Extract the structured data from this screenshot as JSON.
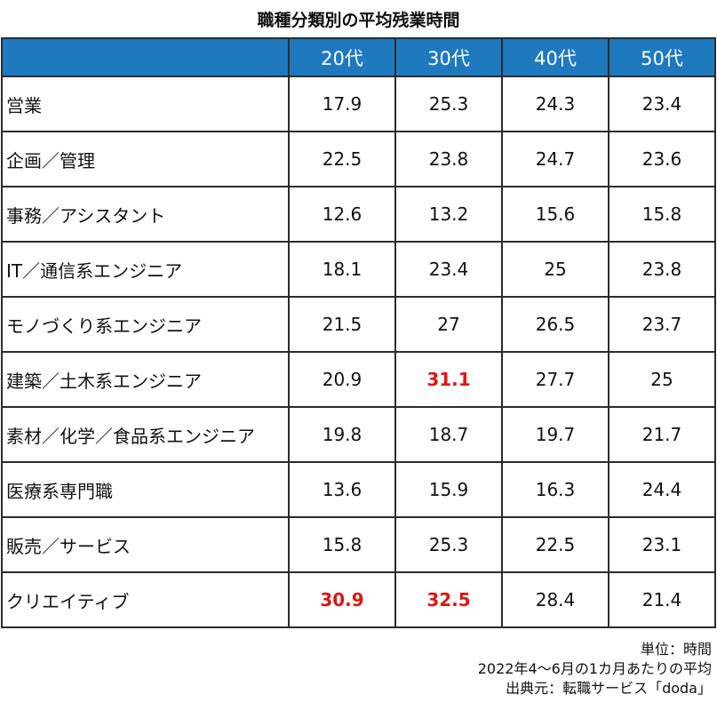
{
  "title": "職種分類別の平均残業時間",
  "chart_data": {
    "type": "table",
    "columns": [
      "",
      "20代",
      "30代",
      "40代",
      "50代"
    ],
    "rows": [
      {
        "category": "営業",
        "values": [
          "17.9",
          "25.3",
          "24.3",
          "23.4"
        ],
        "highlight": [
          false,
          false,
          false,
          false
        ]
      },
      {
        "category": "企画／管理",
        "values": [
          "22.5",
          "23.8",
          "24.7",
          "23.6"
        ],
        "highlight": [
          false,
          false,
          false,
          false
        ]
      },
      {
        "category": "事務／アシスタント",
        "values": [
          "12.6",
          "13.2",
          "15.6",
          "15.8"
        ],
        "highlight": [
          false,
          false,
          false,
          false
        ]
      },
      {
        "category": "IT／通信系エンジニア",
        "values": [
          "18.1",
          "23.4",
          "25",
          "23.8"
        ],
        "highlight": [
          false,
          false,
          false,
          false
        ]
      },
      {
        "category": "モノづくり系エンジニア",
        "values": [
          "21.5",
          "27",
          "26.5",
          "23.7"
        ],
        "highlight": [
          false,
          false,
          false,
          false
        ]
      },
      {
        "category": "建築／土木系エンジニア",
        "values": [
          "20.9",
          "31.1",
          "27.7",
          "25"
        ],
        "highlight": [
          false,
          true,
          false,
          false
        ]
      },
      {
        "category": "素材／化学／食品系エンジニア",
        "values": [
          "19.8",
          "18.7",
          "19.7",
          "21.7"
        ],
        "highlight": [
          false,
          false,
          false,
          false
        ]
      },
      {
        "category": "医療系専門職",
        "values": [
          "13.6",
          "15.9",
          "16.3",
          "24.4"
        ],
        "highlight": [
          false,
          false,
          false,
          false
        ]
      },
      {
        "category": "販売／サービス",
        "values": [
          "15.8",
          "25.3",
          "22.5",
          "23.1"
        ],
        "highlight": [
          false,
          false,
          false,
          false
        ]
      },
      {
        "category": "クリエイティブ",
        "values": [
          "30.9",
          "32.5",
          "28.4",
          "21.4"
        ],
        "highlight": [
          true,
          true,
          false,
          false
        ]
      }
    ]
  },
  "notes": {
    "unit": "単位：時間",
    "period": "2022年4～6月の1カ月あたりの平均",
    "source": "出典元：転職サービス「doda」"
  },
  "colors": {
    "header_bg": "#1e79bf",
    "header_text": "#ffffff",
    "highlight_text": "#e01414",
    "border": "#2b2b2b"
  }
}
